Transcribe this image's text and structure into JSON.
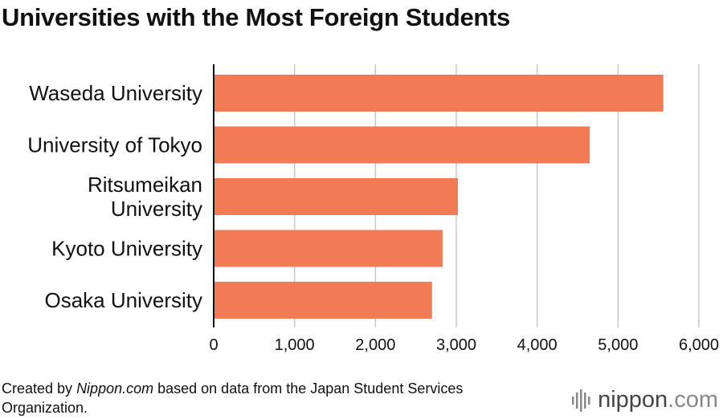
{
  "title": "Universities with the Most Foreign Students",
  "footer": {
    "prefix": "Created by ",
    "source_name": "Nippon.com",
    "suffix": " based on data from the Japan Student Services Organization."
  },
  "brand": {
    "name": "nippon",
    "suffix": ".com",
    "icon": "nippon-logo-icon"
  },
  "colors": {
    "bar": "#f07b55",
    "grid": "#c8c8c8",
    "axis": "#111111"
  },
  "chart_data": {
    "type": "bar",
    "orientation": "horizontal",
    "categories": [
      [
        "Waseda University"
      ],
      [
        "University of Tokyo"
      ],
      [
        "Ritsumeikan",
        "University"
      ],
      [
        "Kyoto University"
      ],
      [
        "Osaka University"
      ]
    ],
    "values": [
      5560,
      4650,
      3020,
      2830,
      2700
    ],
    "xlim": [
      0,
      6000
    ],
    "xticks": [
      0,
      1000,
      2000,
      3000,
      4000,
      5000,
      6000
    ],
    "xtick_labels": [
      "0",
      "1,000",
      "2,000",
      "3,000",
      "4,000",
      "5,000",
      "6,000"
    ],
    "grid": true,
    "legend": false
  }
}
